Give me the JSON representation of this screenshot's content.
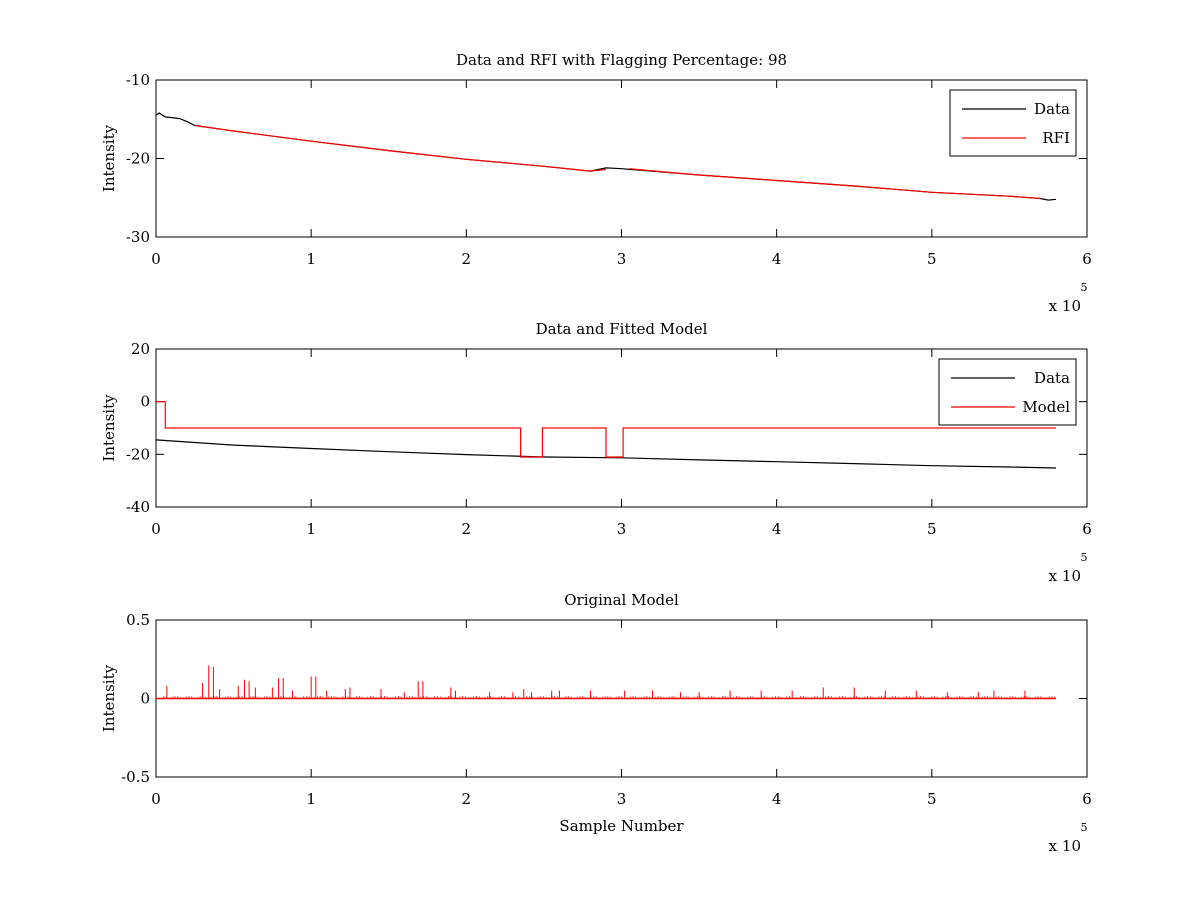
{
  "chart_data": [
    {
      "type": "line",
      "title": "Data and RFI with Flagging Percentage: 98",
      "xlabel": "",
      "ylabel": "Intensity",
      "xlim": [
        0,
        6
      ],
      "ylim": [
        -30,
        -10
      ],
      "x_ticks": [
        0,
        1,
        2,
        3,
        4,
        5,
        6
      ],
      "y_ticks": [
        -30,
        -20,
        -10
      ],
      "x_multiplier": "x 10",
      "x_multiplier_exponent": "5",
      "grid": false,
      "legend_position": "top-right",
      "series": [
        {
          "name": "Data",
          "color": "#000000",
          "x": [
            0,
            0.02,
            0.06,
            0.15,
            0.2,
            0.25,
            0.5,
            1,
            1.5,
            2,
            2.5,
            2.8,
            2.85,
            2.9,
            3.0,
            3.5,
            4,
            4.5,
            5,
            5.5,
            5.7,
            5.75,
            5.8
          ],
          "y": [
            -14.5,
            -14.2,
            -14.7,
            -14.9,
            -15.3,
            -15.8,
            -16.5,
            -17.8,
            -19.0,
            -20.1,
            -21.0,
            -21.6,
            -21.4,
            -21.2,
            -21.3,
            -22.1,
            -22.8,
            -23.5,
            -24.3,
            -24.8,
            -25.1,
            -25.3,
            -25.2
          ]
        },
        {
          "name": "RFI",
          "color": "#ff0000",
          "x": [
            0.25,
            0.5,
            1,
            1.5,
            2,
            2.5,
            2.8,
            2.85,
            2.9,
            null,
            3.05,
            3.5,
            4,
            4.5,
            5,
            5.5,
            5.7
          ],
          "y": [
            -15.8,
            -16.5,
            -17.8,
            -19.0,
            -20.1,
            -21.0,
            -21.6,
            -21.5,
            -21.4,
            null,
            -21.3,
            -22.1,
            -22.8,
            -23.5,
            -24.3,
            -24.8,
            -25.1
          ]
        }
      ]
    },
    {
      "type": "line",
      "title": "Data and Fitted Model",
      "xlabel": "",
      "ylabel": "Intensity",
      "xlim": [
        0,
        6
      ],
      "ylim": [
        -40,
        20
      ],
      "x_ticks": [
        0,
        1,
        2,
        3,
        4,
        5,
        6
      ],
      "y_ticks": [
        -40,
        -20,
        0,
        20
      ],
      "x_multiplier": "x 10",
      "x_multiplier_exponent": "5",
      "grid": false,
      "legend_position": "top-right",
      "series": [
        {
          "name": "Data",
          "color": "#000000",
          "x": [
            0,
            0.5,
            1,
            1.5,
            2,
            2.5,
            3,
            3.5,
            4,
            4.5,
            5,
            5.5,
            5.8
          ],
          "y": [
            -14.5,
            -16.5,
            -17.8,
            -19.0,
            -20.1,
            -21.0,
            -21.3,
            -22.1,
            -22.8,
            -23.5,
            -24.3,
            -24.8,
            -25.2
          ]
        },
        {
          "name": "Model",
          "color": "#ff0000",
          "x": [
            0,
            0.06,
            0.06,
            2.35,
            2.35,
            2.49,
            2.49,
            2.9,
            2.9,
            3.01,
            3.01,
            5.8
          ],
          "y": [
            0,
            0,
            -10,
            -10,
            -21,
            -21,
            -10,
            -10,
            -21,
            -21,
            -10,
            -10
          ]
        }
      ]
    },
    {
      "type": "line",
      "title": "Original Model",
      "xlabel": "Sample Number",
      "ylabel": "Intensity",
      "xlim": [
        0,
        6
      ],
      "ylim": [
        -0.5,
        0.5
      ],
      "x_ticks": [
        0,
        1,
        2,
        3,
        4,
        5,
        6
      ],
      "y_ticks": [
        -0.5,
        0,
        0.5
      ],
      "x_multiplier": "x 10",
      "x_multiplier_exponent": "5",
      "grid": false,
      "legend_position": "none",
      "series": [
        {
          "color": "#ff0000",
          "x_range": [
            0,
            5.8
          ],
          "baseline": 0,
          "spikes": [
            [
              0.07,
              0.08
            ],
            [
              0.3,
              0.1
            ],
            [
              0.34,
              0.21
            ],
            [
              0.37,
              0.2
            ],
            [
              0.41,
              0.06
            ],
            [
              0.53,
              0.08
            ],
            [
              0.57,
              0.12
            ],
            [
              0.6,
              0.11
            ],
            [
              0.64,
              0.07
            ],
            [
              0.75,
              0.07
            ],
            [
              0.79,
              0.13
            ],
            [
              0.82,
              0.13
            ],
            [
              0.88,
              0.05
            ],
            [
              1.0,
              0.14
            ],
            [
              1.03,
              0.14
            ],
            [
              1.1,
              0.05
            ],
            [
              1.22,
              0.06
            ],
            [
              1.25,
              0.07
            ],
            [
              1.45,
              0.06
            ],
            [
              1.6,
              0.04
            ],
            [
              1.69,
              0.11
            ],
            [
              1.72,
              0.11
            ],
            [
              1.9,
              0.07
            ],
            [
              1.93,
              0.05
            ],
            [
              2.15,
              0.04
            ],
            [
              2.3,
              0.04
            ],
            [
              2.37,
              0.06
            ],
            [
              2.42,
              0.04
            ],
            [
              2.55,
              0.05
            ],
            [
              2.6,
              0.05
            ],
            [
              2.8,
              0.05
            ],
            [
              3.02,
              0.05
            ],
            [
              3.2,
              0.05
            ],
            [
              3.38,
              0.04
            ],
            [
              3.5,
              0.04
            ],
            [
              3.7,
              0.05
            ],
            [
              3.9,
              0.05
            ],
            [
              4.1,
              0.05
            ],
            [
              4.3,
              0.07
            ],
            [
              4.5,
              0.07
            ],
            [
              4.7,
              0.05
            ],
            [
              4.9,
              0.05
            ],
            [
              5.1,
              0.04
            ],
            [
              5.3,
              0.04
            ],
            [
              5.4,
              0.05
            ],
            [
              5.6,
              0.05
            ]
          ]
        }
      ]
    }
  ]
}
